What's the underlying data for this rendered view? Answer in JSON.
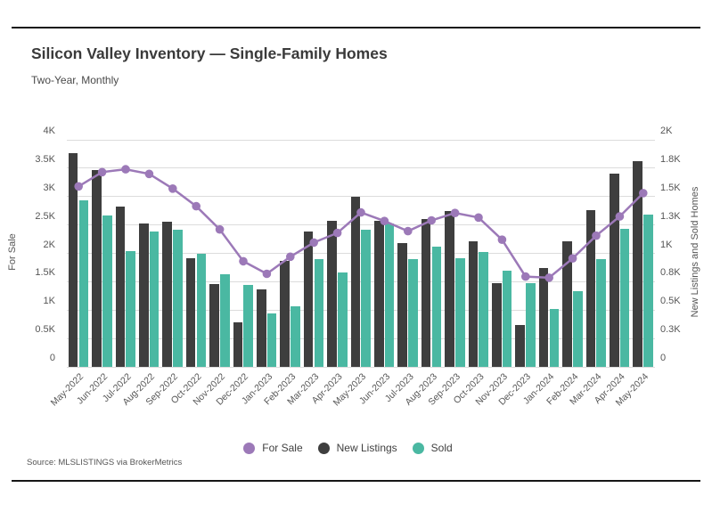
{
  "header": {
    "title": "Silicon Valley Inventory — Single-Family Homes",
    "subtitle": "Two-Year, Monthly"
  },
  "source_note": "Source:  MLSLISTINGS via BrokerMetrics",
  "colors": {
    "for_sale": "#9c79b8",
    "new_listings": "#3e3e3e",
    "sold": "#4ab8a2",
    "gridline": "#dcdcdc"
  },
  "legend": [
    {
      "label": "For Sale",
      "color": "#9c79b8"
    },
    {
      "label": "New Listings",
      "color": "#3e3e3e"
    },
    {
      "label": "Sold",
      "color": "#4ab8a2"
    }
  ],
  "chart_data": {
    "type": "bar",
    "subtype": "grouped-bars-with-line",
    "title": "Silicon Valley Inventory — Single-Family Homes",
    "subtitle": "Two-Year, Monthly",
    "grid": true,
    "legend_position": "bottom",
    "categories": [
      "May-2022",
      "Jun-2022",
      "Jul-2022",
      "Aug-2022",
      "Sep-2022",
      "Oct-2022",
      "Nov-2022",
      "Dec-2022",
      "Jan-2023",
      "Feb-2023",
      "Mar-2023",
      "Apr-2023",
      "May-2023",
      "Jun-2023",
      "Jul-2023",
      "Aug-2023",
      "Sep-2023",
      "Oct-2023",
      "Nov-2023",
      "Dec-2023",
      "Jan-2024",
      "Feb-2024",
      "Mar-2024",
      "Apr-2024",
      "May-2024"
    ],
    "series": [
      {
        "name": "For Sale",
        "type": "line",
        "axis": "left",
        "color": "#9c79b8",
        "values": [
          3180,
          3430,
          3480,
          3400,
          3140,
          2830,
          2420,
          1860,
          1640,
          1940,
          2190,
          2360,
          2720,
          2570,
          2390,
          2580,
          2710,
          2630,
          2240,
          1590,
          1570,
          1910,
          2310,
          2650,
          3060
        ]
      },
      {
        "name": "New Listings",
        "type": "bar",
        "axis": "right",
        "color": "#3e3e3e",
        "values": [
          1880,
          1730,
          1410,
          1260,
          1280,
          960,
          730,
          390,
          680,
          930,
          1190,
          1290,
          1500,
          1290,
          1090,
          1300,
          1370,
          1110,
          740,
          370,
          870,
          1110,
          1380,
          1700,
          1810
        ]
      },
      {
        "name": "Sold",
        "type": "bar",
        "axis": "right",
        "color": "#4ab8a2",
        "values": [
          1470,
          1330,
          1020,
          1190,
          1210,
          1000,
          820,
          720,
          470,
          530,
          950,
          830,
          1210,
          1260,
          950,
          1060,
          960,
          1010,
          850,
          740,
          510,
          670,
          950,
          1220,
          1340
        ]
      }
    ],
    "left_axis": {
      "label": "For Sale",
      "min": 0,
      "max": 4000,
      "ticks": [
        "4K",
        "3.5K",
        "3K",
        "2.5K",
        "2K",
        "1.5K",
        "1K",
        "0.5K",
        "0"
      ]
    },
    "right_axis": {
      "label": "New Listings and Sold Homes",
      "min": 0,
      "max": 2000,
      "ticks": [
        "2K",
        "1.8K",
        "1.5K",
        "1.3K",
        "1K",
        "0.8K",
        "0.5K",
        "0.3K",
        "0"
      ]
    }
  }
}
